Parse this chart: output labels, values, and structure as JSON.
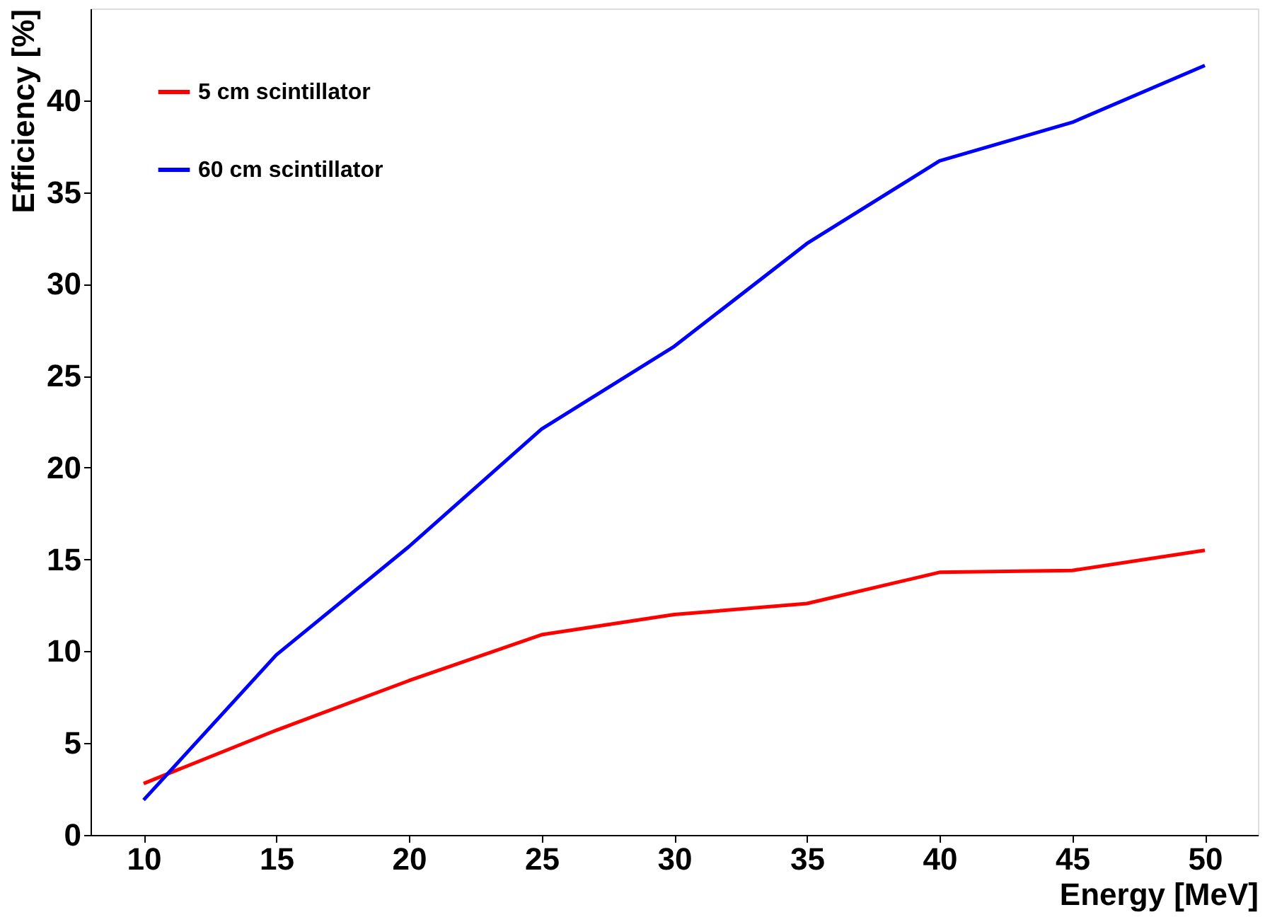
{
  "chart_data": {
    "type": "line",
    "xlabel": "Energy [MeV]",
    "ylabel": "Efficiency [%]",
    "x": [
      10,
      15,
      20,
      25,
      30,
      35,
      40,
      45,
      50
    ],
    "series": [
      {
        "name": "5 cm scintillator",
        "color": "#ff0000",
        "values": [
          2.8,
          5.7,
          8.4,
          10.9,
          12.0,
          12.6,
          14.3,
          14.4,
          15.5
        ]
      },
      {
        "name": "60 cm scintillator",
        "color": "#0000ff",
        "values": [
          1.9,
          9.8,
          15.7,
          22.1,
          26.6,
          32.2,
          36.7,
          38.8,
          41.9
        ]
      }
    ],
    "xlim": [
      8,
      52
    ],
    "xticks": [
      10,
      15,
      20,
      25,
      30,
      35,
      40,
      45,
      50
    ],
    "ylim": [
      0,
      45
    ],
    "yticks": [
      0,
      5,
      10,
      15,
      20,
      25,
      30,
      35,
      40
    ],
    "grid": false,
    "legend": "top left",
    "marker": "none",
    "line_style": "solid"
  }
}
